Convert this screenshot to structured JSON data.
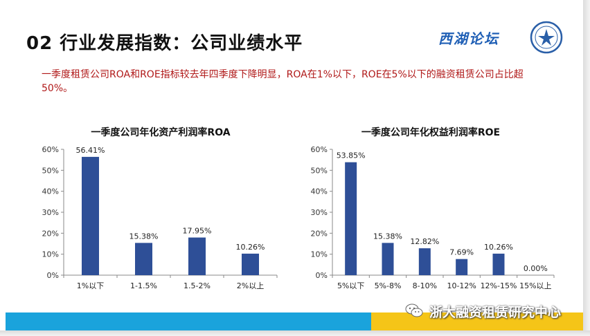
{
  "title": "02  行业发展指数：公司业绩水平",
  "logo_text": "西湖论坛",
  "subtitle": "一季度租赁公司ROA和ROE指标较去年四季度下降明显，ROA在1%以下，ROE在5%以下的融资租赁公司占比超50%。",
  "footer": "浙大融资租赁研究中心",
  "colors": {
    "bar": "#2e4f97",
    "accent_blue": "#1aa3dc",
    "accent_gold": "#f5c518",
    "subtitle_red": "#b01818"
  },
  "chart_data": [
    {
      "type": "bar",
      "title": "一季度公司年化资产利润率ROA",
      "categories": [
        "1%以下",
        "1-1.5%",
        "1.5-2%",
        "2%以上"
      ],
      "values": [
        56.41,
        15.38,
        17.95,
        10.26
      ],
      "value_labels": [
        "56.41%",
        "15.38%",
        "17.95%",
        "10.26%"
      ],
      "yticks": [
        "0%",
        "10%",
        "20%",
        "30%",
        "40%",
        "50%",
        "60%"
      ],
      "ylim": [
        0,
        60
      ],
      "grid": false
    },
    {
      "type": "bar",
      "title": "一季度公司年化权益利润率ROE",
      "categories": [
        "5%以下",
        "5%-8%",
        "8-10%",
        "10-12%",
        "12%-15%",
        "15%以上"
      ],
      "values": [
        53.85,
        15.38,
        12.82,
        7.69,
        10.26,
        0.0
      ],
      "value_labels": [
        "53.85%",
        "15.38%",
        "12.82%",
        "7.69%",
        "10.26%",
        "0.00%"
      ],
      "yticks": [
        "0%",
        "10%",
        "20%",
        "30%",
        "40%",
        "50%",
        "60%"
      ],
      "ylim": [
        0,
        60
      ],
      "grid": false
    }
  ]
}
